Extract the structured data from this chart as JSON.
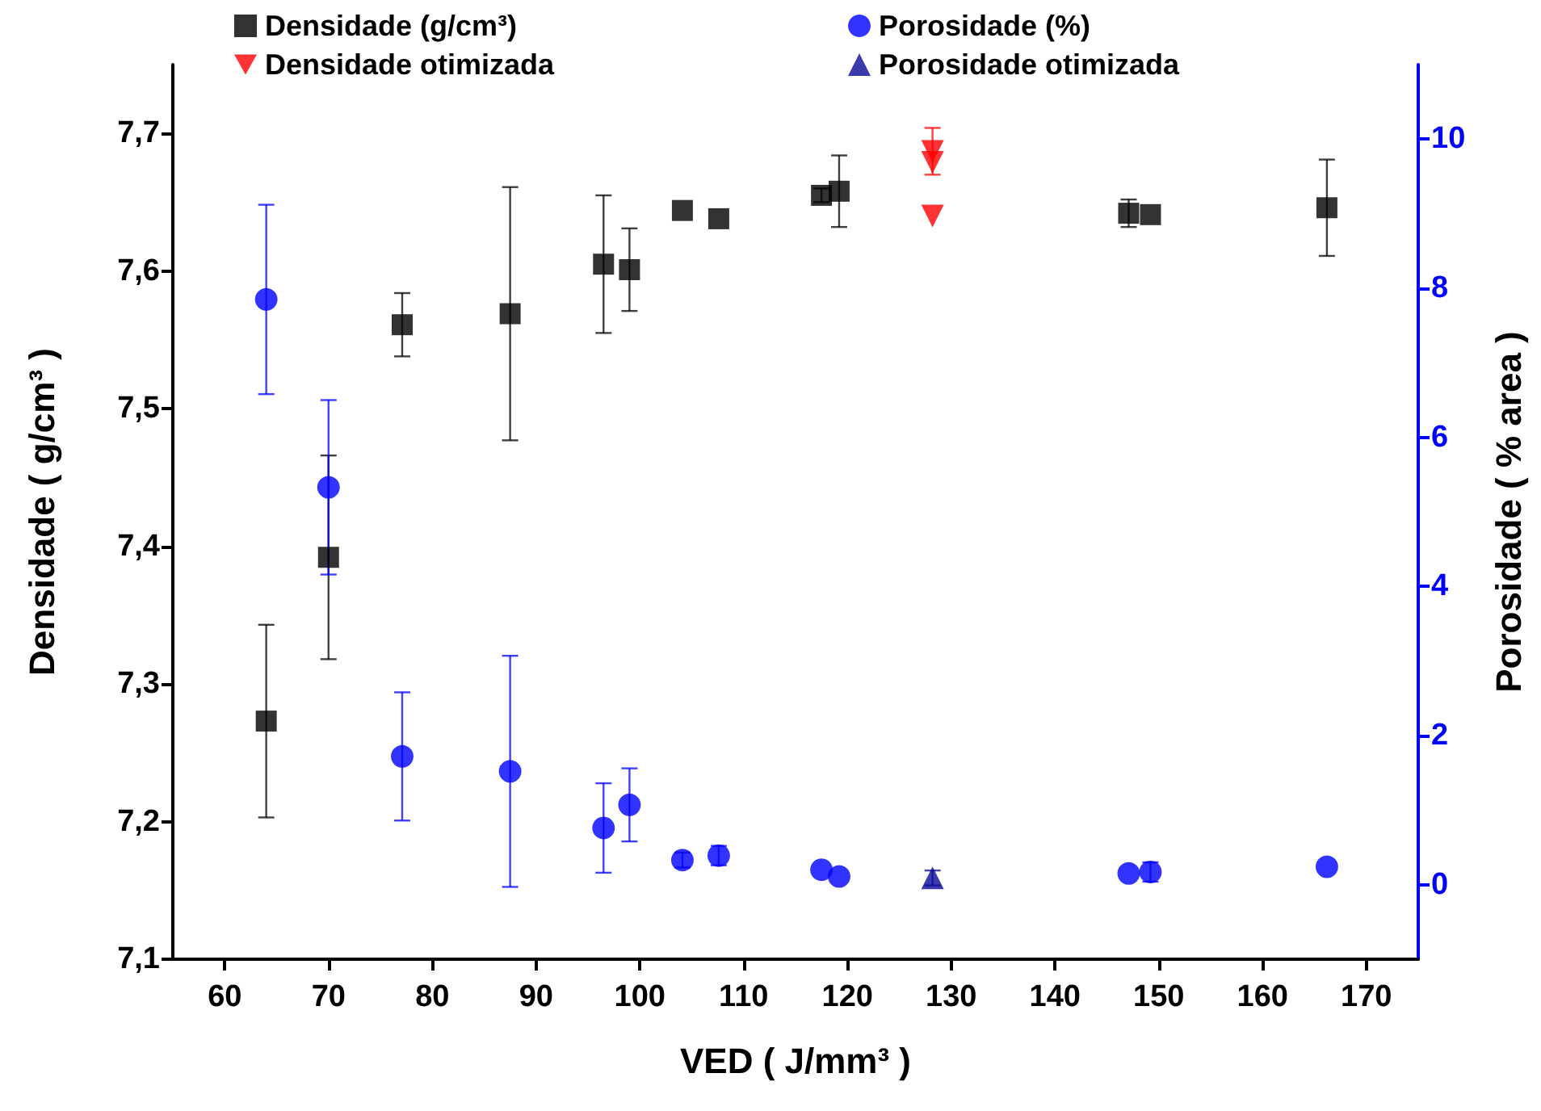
{
  "chart_data": {
    "type": "scatter",
    "xlabel": "VED ( J/mm³ )",
    "ylabel": "Densidade ( g/cm³ )",
    "y2label": "Porosidade ( % area )",
    "xlim": [
      55,
      175
    ],
    "xticks": [
      60,
      70,
      80,
      90,
      100,
      110,
      120,
      130,
      140,
      150,
      160,
      170
    ],
    "ylim": [
      7.1,
      7.75
    ],
    "yticks": [
      {
        "value": 7.1,
        "label": "7,1"
      },
      {
        "value": 7.2,
        "label": "7,2"
      },
      {
        "value": 7.3,
        "label": "7,3"
      },
      {
        "value": 7.4,
        "label": "7,4"
      },
      {
        "value": 7.5,
        "label": "7,5"
      },
      {
        "value": 7.6,
        "label": "7,6"
      },
      {
        "value": 7.7,
        "label": "7,7"
      }
    ],
    "y2lim": [
      -1,
      11
    ],
    "y2ticks": [
      0,
      2,
      4,
      6,
      8,
      10
    ],
    "legend": "top",
    "grid": false,
    "series": [
      {
        "name": "Densidade (g/cm³)",
        "color": "#000000",
        "marker": "square",
        "x": [
          64,
          70,
          77.1,
          87.5,
          96.5,
          99,
          104.1,
          107.6,
          117.5,
          119.2,
          147.1,
          149.2,
          166.2
        ],
        "values": [
          7.273,
          7.392,
          7.561,
          7.569,
          7.605,
          7.601,
          7.644,
          7.638,
          7.655,
          7.658,
          7.642,
          7.641,
          7.646
        ],
        "errors": [
          0.07,
          0.074,
          0.023,
          0.092,
          0.05,
          0.03,
          null,
          null,
          0.005,
          0.026,
          0.01,
          null,
          0.035
        ]
      },
      {
        "name": "Densidade otimizada",
        "color": "#ff0000",
        "marker": "triangle-down",
        "x": [
          128.2,
          128.2,
          128.2
        ],
        "values": [
          7.687,
          7.679,
          7.64
        ],
        "errors": [
          0.017,
          null,
          null
        ]
      },
      {
        "name": "Porosidade (%)",
        "color": "#0000ff",
        "marker": "circle",
        "axis": "y2",
        "x": [
          64,
          70,
          77.1,
          87.5,
          96.5,
          99,
          104.1,
          107.6,
          117.5,
          119.2,
          147.1,
          149.2,
          166.2
        ],
        "values": [
          7.85,
          5.33,
          1.72,
          1.52,
          0.76,
          1.07,
          0.33,
          0.39,
          0.2,
          0.11,
          0.15,
          0.17,
          0.24
        ],
        "errors": [
          1.27,
          1.17,
          0.86,
          1.55,
          0.6,
          0.49,
          0.1,
          0.13,
          null,
          null,
          null,
          0.13,
          null
        ]
      },
      {
        "name": "Porosidade otimizada",
        "color": "#0a0a96",
        "marker": "triangle",
        "axis": "y2",
        "x": [
          128.2
        ],
        "values": [
          0.09
        ],
        "errors": [
          0.1
        ]
      }
    ]
  }
}
